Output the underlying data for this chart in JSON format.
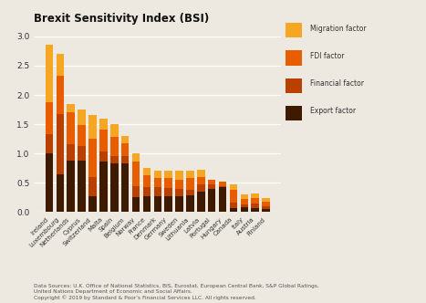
{
  "title": "Brexit Sensitivity Index (BSI)",
  "countries": [
    "Ireland",
    "Luxembourg",
    "Netherlands",
    "Cyprus",
    "Switzerland",
    "Malta",
    "Spain",
    "Belgium",
    "Norway",
    "France",
    "Denmark",
    "Germany",
    "Sweden",
    "Lithuania",
    "Latvia",
    "Portugal",
    "Hungary",
    "Canada",
    "Italy",
    "Austria",
    "Finland"
  ],
  "export_factor": [
    1.0,
    0.65,
    0.88,
    0.88,
    0.27,
    0.86,
    0.83,
    0.83,
    0.25,
    0.27,
    0.27,
    0.27,
    0.27,
    0.28,
    0.35,
    0.4,
    0.42,
    0.07,
    0.08,
    0.07,
    0.05
  ],
  "financial_factor": [
    0.33,
    1.03,
    0.28,
    0.25,
    0.33,
    0.18,
    0.13,
    0.13,
    0.2,
    0.16,
    0.16,
    0.14,
    0.13,
    0.1,
    0.12,
    0.07,
    0.02,
    0.09,
    0.05,
    0.07,
    0.05
  ],
  "fdi_factor": [
    0.55,
    0.65,
    0.55,
    0.35,
    0.65,
    0.37,
    0.32,
    0.22,
    0.42,
    0.2,
    0.15,
    0.17,
    0.15,
    0.2,
    0.13,
    0.08,
    0.08,
    0.22,
    0.1,
    0.1,
    0.07
  ],
  "migration_factor": [
    0.97,
    0.37,
    0.14,
    0.27,
    0.4,
    0.18,
    0.22,
    0.12,
    0.13,
    0.12,
    0.12,
    0.12,
    0.15,
    0.12,
    0.13,
    0.0,
    0.0,
    0.1,
    0.08,
    0.08,
    0.07
  ],
  "colors": {
    "export": "#3d1a00",
    "financial": "#b84000",
    "fdi": "#e85d00",
    "migration": "#f5a623"
  },
  "ylim": [
    0,
    3.0
  ],
  "yticks": [
    0.0,
    0.5,
    1.0,
    1.5,
    2.0,
    2.5,
    3.0
  ],
  "background_color": "#ede9e0",
  "footer": "Data Sources: U.K. Office of National Statistics, BIS, Eurostat, European Central Bank, S&P Global Ratings,\nUnited Nations Department of Economic and Social Affairs.\nCopyright © 2019 by Standard & Poor’s Financial Services LLC. All rights reserved."
}
